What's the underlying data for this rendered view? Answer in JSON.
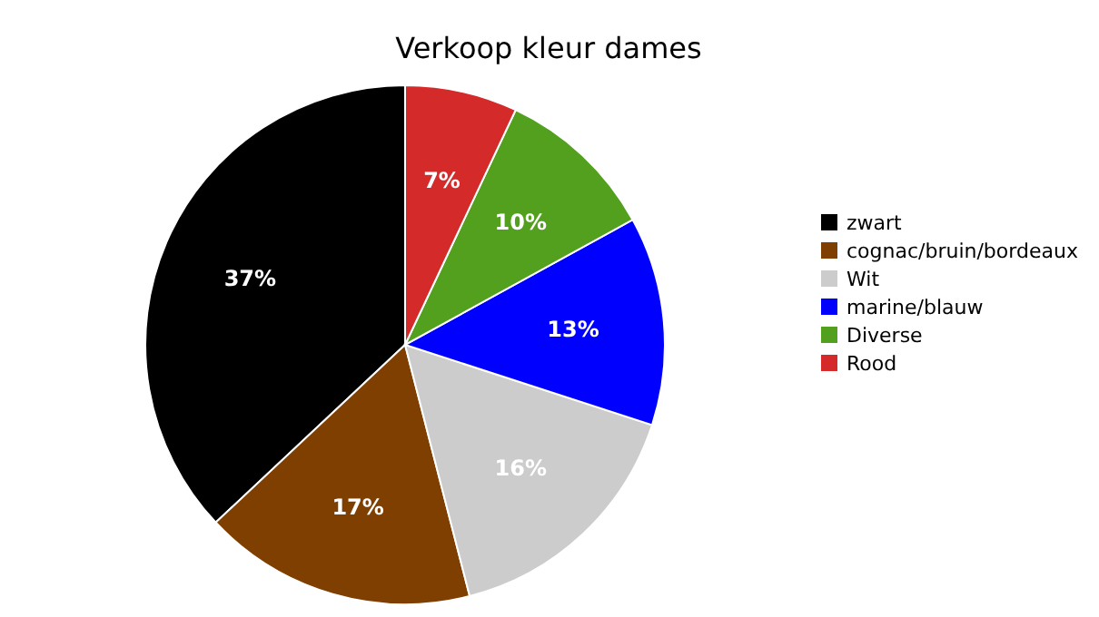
{
  "chart_data": {
    "type": "pie",
    "title": "Verkoop kleur dames",
    "categories": [
      "zwart",
      "cognac/bruin/bordeaux",
      "Wit",
      "marine/blauw",
      "Diverse",
      "Rood"
    ],
    "values": [
      37,
      17,
      16,
      13,
      10,
      7
    ],
    "colors": [
      "#000000",
      "#7f3f00",
      "#cccccc",
      "#0000ff",
      "#52a01e",
      "#d42a2a"
    ],
    "value_labels": [
      "37%",
      "17%",
      "16%",
      "13%",
      "10%",
      "7%"
    ],
    "legend": "right"
  }
}
